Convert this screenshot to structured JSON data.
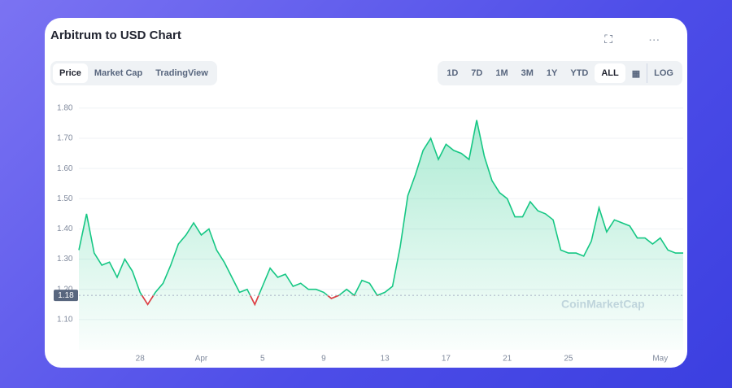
{
  "chart_data": {
    "type": "area_line",
    "title": "Arbitrum to USD Chart",
    "categories": [
      null,
      null,
      null,
      null,
      null,
      null,
      null,
      null,
      "28",
      null,
      null,
      null,
      null,
      null,
      null,
      null,
      "Apr",
      null,
      null,
      null,
      null,
      null,
      null,
      null,
      "5",
      null,
      null,
      null,
      null,
      null,
      null,
      null,
      "9",
      null,
      null,
      null,
      null,
      null,
      null,
      null,
      "13",
      null,
      null,
      null,
      null,
      null,
      null,
      null,
      "17",
      null,
      null,
      null,
      null,
      null,
      null,
      null,
      "21",
      null,
      null,
      null,
      null,
      null,
      null,
      null,
      "25",
      null,
      null,
      null,
      null,
      null,
      null,
      null,
      null,
      null,
      null,
      null,
      "May",
      null,
      null,
      null
    ],
    "series": [
      {
        "name": "Price",
        "color": "#16c784",
        "values": [
          1.33,
          1.45,
          1.32,
          1.28,
          1.29,
          1.24,
          1.3,
          1.26,
          1.19,
          1.15,
          1.19,
          1.22,
          1.28,
          1.35,
          1.38,
          1.42,
          1.38,
          1.4,
          1.33,
          1.29,
          1.24,
          1.19,
          1.2,
          1.15,
          1.21,
          1.27,
          1.24,
          1.25,
          1.21,
          1.22,
          1.2,
          1.2,
          1.19,
          1.17,
          1.18,
          1.2,
          1.18,
          1.23,
          1.22,
          1.18,
          1.19,
          1.21,
          1.34,
          1.51,
          1.58,
          1.66,
          1.7,
          1.63,
          1.68,
          1.66,
          1.65,
          1.63,
          1.76,
          1.64,
          1.56,
          1.52,
          1.5,
          1.44,
          1.44,
          1.49,
          1.46,
          1.45,
          1.43,
          1.33,
          1.32,
          1.32,
          1.31,
          1.36,
          1.47,
          1.39,
          1.43,
          1.42,
          1.41,
          1.37,
          1.37,
          1.35,
          1.37,
          1.33,
          1.32,
          1.32
        ]
      }
    ],
    "below_color": "#ea3943",
    "reference": {
      "value": 1.18,
      "label": "1.18"
    },
    "ylim": [
      1.0,
      1.84
    ],
    "yticks": [
      {
        "value": 1.1,
        "label": "1.10"
      },
      {
        "value": 1.2,
        "label": "1.20"
      },
      {
        "value": 1.3,
        "label": "1.30"
      },
      {
        "value": 1.4,
        "label": "1.40"
      },
      {
        "value": 1.5,
        "label": "1.50"
      },
      {
        "value": 1.6,
        "label": "1.60"
      },
      {
        "value": 1.7,
        "label": "1.70"
      },
      {
        "value": 1.8,
        "label": "1.80"
      }
    ],
    "grid": true,
    "watermark": "CoinMarketCap"
  },
  "ui": {
    "tabs": [
      "Price",
      "Market Cap",
      "TradingView"
    ],
    "ranges": [
      "1D",
      "7D",
      "1M",
      "3M",
      "1Y",
      "YTD",
      "ALL"
    ],
    "log": "LOG"
  }
}
